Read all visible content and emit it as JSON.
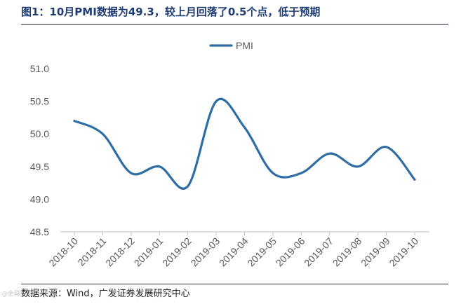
{
  "header": {
    "title": "图1：10月PMI数据为49.3，较上月回落了0.5个点，低于预期"
  },
  "footer": {
    "source": "数据来源：Wind，广发证券发展研究中心",
    "watermark": "@金融投资"
  },
  "colors": {
    "series": "#2e6da4",
    "title": "#1f3d73",
    "axis": "#bfbfbf",
    "tick": "#595959"
  },
  "chart_data": {
    "type": "line",
    "title": "",
    "xlabel": "",
    "ylabel": "",
    "categories": [
      "2018-10",
      "2018-11",
      "2018-12",
      "2019-01",
      "2019-02",
      "2019-03",
      "2019-04",
      "2019-05",
      "2019-06",
      "2019-07",
      "2019-08",
      "2019-09",
      "2019-10"
    ],
    "series": [
      {
        "name": "PMI",
        "values": [
          50.2,
          50.0,
          49.4,
          49.5,
          49.2,
          50.5,
          50.1,
          49.4,
          49.4,
          49.7,
          49.5,
          49.8,
          49.3
        ]
      }
    ],
    "ylim": [
      48.5,
      51.0
    ],
    "yticks": [
      "48.5",
      "49.0",
      "49.5",
      "50.0",
      "50.5",
      "51.0"
    ],
    "grid": false,
    "smooth": true,
    "legend_position": "top-center"
  }
}
